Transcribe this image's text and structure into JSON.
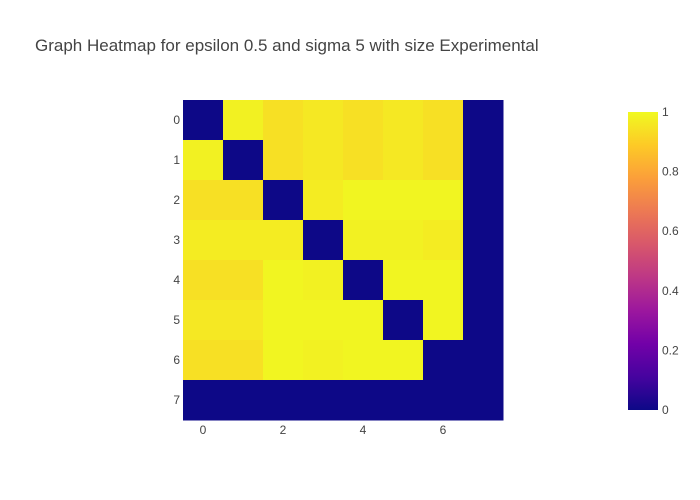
{
  "chart_data": {
    "type": "heatmap",
    "title": "Graph Heatmap for epsilon 0.5 and sigma 5 with size Experimental",
    "x": [
      0,
      1,
      2,
      3,
      4,
      5,
      6,
      7
    ],
    "y": [
      0,
      1,
      2,
      3,
      4,
      5,
      6,
      7
    ],
    "x_tick_labels": [
      "0",
      "2",
      "4",
      "6"
    ],
    "y_tick_labels": [
      "0",
      "1",
      "2",
      "3",
      "4",
      "5",
      "6",
      "7"
    ],
    "y_axis_reversed": true,
    "z": [
      [
        0.0,
        0.98,
        0.94,
        0.96,
        0.94,
        0.96,
        0.94,
        0.0
      ],
      [
        0.98,
        0.0,
        0.94,
        0.96,
        0.94,
        0.96,
        0.94,
        0.0
      ],
      [
        0.94,
        0.94,
        0.0,
        0.97,
        0.99,
        0.99,
        0.99,
        0.0
      ],
      [
        0.97,
        0.97,
        0.97,
        0.0,
        0.98,
        0.98,
        0.97,
        0.0
      ],
      [
        0.94,
        0.94,
        0.99,
        0.98,
        0.0,
        0.99,
        0.99,
        0.0
      ],
      [
        0.96,
        0.96,
        0.99,
        0.99,
        0.99,
        0.0,
        0.99,
        0.0
      ],
      [
        0.94,
        0.94,
        0.99,
        0.98,
        0.99,
        0.99,
        0.0,
        0.0
      ],
      [
        0.0,
        0.0,
        0.0,
        0.0,
        0.0,
        0.0,
        0.0,
        0.0
      ]
    ],
    "colorscale": "Plasma",
    "zmin": 0,
    "zmax": 1,
    "colorbar_ticks": [
      "0",
      "0.2",
      "0.4",
      "0.6",
      "0.8",
      "1"
    ],
    "grid": false
  }
}
